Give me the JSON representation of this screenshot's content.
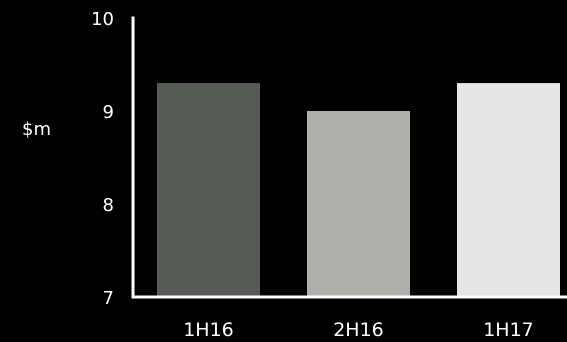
{
  "chart_data": {
    "type": "bar",
    "categories": [
      "1H16",
      "2H16",
      "1H17"
    ],
    "values": [
      9.3,
      9.0,
      9.3
    ],
    "colors": [
      "#575a57",
      "#afb0ae",
      "#e6e6e6"
    ],
    "ylabel": "$m",
    "ylim": [
      7,
      10
    ],
    "yticks": [
      "7",
      "8",
      "9",
      "10"
    ],
    "grid": false,
    "background": "#000000",
    "axis_color": "#ffffff"
  }
}
